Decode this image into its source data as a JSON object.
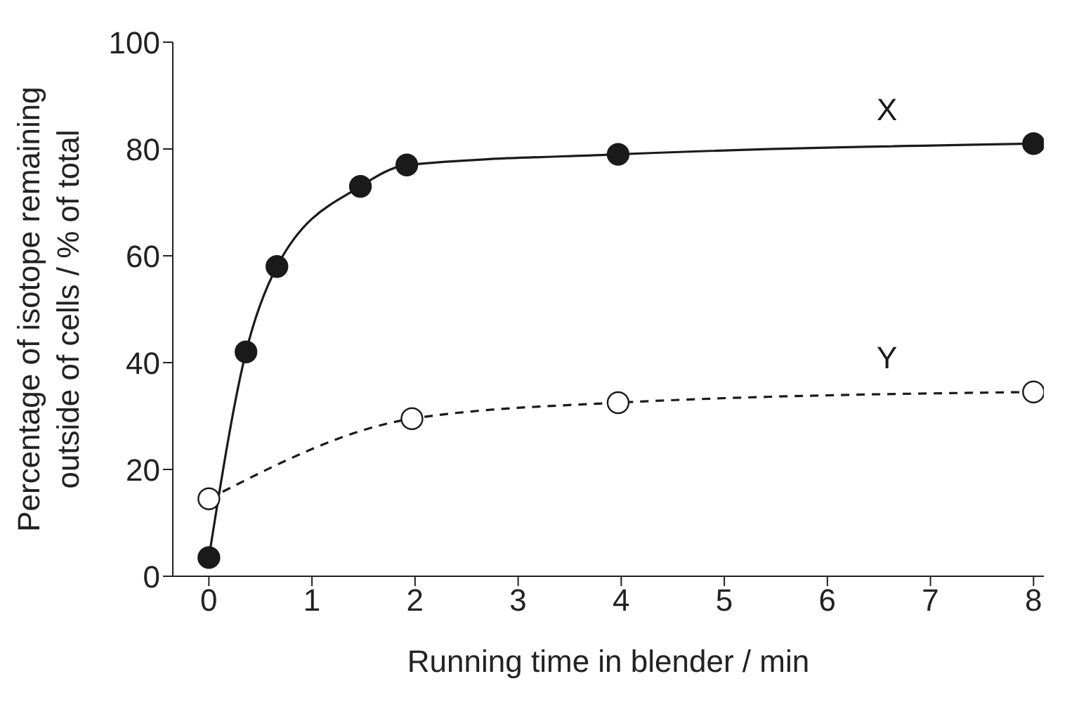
{
  "chart_data": {
    "type": "line",
    "xlabel": "Running time in blender / min",
    "ylabel": "Percentage of isotope remaining outside of cells / % of total",
    "xlim": [
      -0.35,
      8.1
    ],
    "xticks": [
      0,
      1,
      2,
      3,
      4,
      5,
      6,
      7,
      8
    ],
    "ylim": [
      0,
      100
    ],
    "yticks": [
      0,
      20,
      40,
      60,
      80,
      100
    ],
    "grid": false,
    "legend": false,
    "marker": "circle",
    "series": [
      {
        "name": "X",
        "color": "#1a1a1a",
        "line_style": "solid",
        "x": [
          0,
          0.36,
          0.66,
          1.47,
          1.92,
          3.97,
          8
        ],
        "values": [
          3.5,
          42,
          58,
          73,
          77,
          79,
          81
        ]
      },
      {
        "name": "Y",
        "color": "#1a1a1a",
        "line_style": "dashed",
        "x": [
          0,
          1.97,
          3.97,
          8
        ],
        "values": [
          14.5,
          29.5,
          32.5,
          34.5
        ]
      }
    ]
  }
}
